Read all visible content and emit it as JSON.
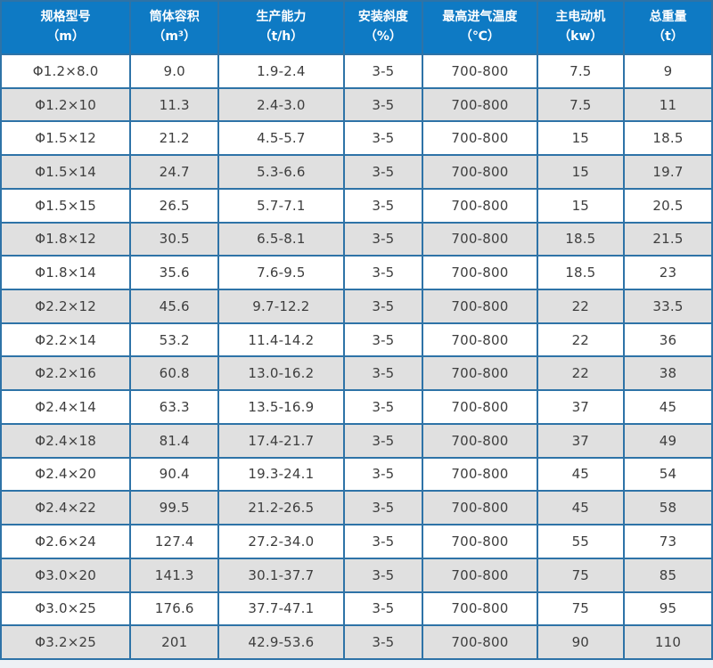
{
  "colors": {
    "header_bg": "#0e7ac4",
    "header_text": "#ffffff",
    "grid_border": "#2e73a7",
    "outer_border": "#1d679e",
    "row_odd_bg": "#ffffff",
    "row_even_bg": "#e0e0e0",
    "cell_text": "#3e3e3e",
    "page_bg": "#eef1f5"
  },
  "chart_data": {
    "type": "table",
    "title": "",
    "columns": [
      {
        "label": "规格型号",
        "unit": "（m）"
      },
      {
        "label": "筒体容积",
        "unit": "（m³）"
      },
      {
        "label": "生产能力",
        "unit": "（t/h）"
      },
      {
        "label": "安装斜度",
        "unit": "（%）"
      },
      {
        "label": "最高进气温度",
        "unit": "（℃）"
      },
      {
        "label": "主电动机",
        "unit": "（kw）"
      },
      {
        "label": "总重量",
        "unit": "（t）"
      }
    ],
    "rows": [
      [
        "Φ1.2×8.0",
        "9.0",
        "1.9-2.4",
        "3-5",
        "700-800",
        "7.5",
        "9"
      ],
      [
        "Φ1.2×10",
        "11.3",
        "2.4-3.0",
        "3-5",
        "700-800",
        "7.5",
        "11"
      ],
      [
        "Φ1.5×12",
        "21.2",
        "4.5-5.7",
        "3-5",
        "700-800",
        "15",
        "18.5"
      ],
      [
        "Φ1.5×14",
        "24.7",
        "5.3-6.6",
        "3-5",
        "700-800",
        "15",
        "19.7"
      ],
      [
        "Φ1.5×15",
        "26.5",
        "5.7-7.1",
        "3-5",
        "700-800",
        "15",
        "20.5"
      ],
      [
        "Φ1.8×12",
        "30.5",
        "6.5-8.1",
        "3-5",
        "700-800",
        "18.5",
        "21.5"
      ],
      [
        "Φ1.8×14",
        "35.6",
        "7.6-9.5",
        "3-5",
        "700-800",
        "18.5",
        "23"
      ],
      [
        "Φ2.2×12",
        "45.6",
        "9.7-12.2",
        "3-5",
        "700-800",
        "22",
        "33.5"
      ],
      [
        "Φ2.2×14",
        "53.2",
        "11.4-14.2",
        "3-5",
        "700-800",
        "22",
        "36"
      ],
      [
        "Φ2.2×16",
        "60.8",
        "13.0-16.2",
        "3-5",
        "700-800",
        "22",
        "38"
      ],
      [
        "Φ2.4×14",
        "63.3",
        "13.5-16.9",
        "3-5",
        "700-800",
        "37",
        "45"
      ],
      [
        "Φ2.4×18",
        "81.4",
        "17.4-21.7",
        "3-5",
        "700-800",
        "37",
        "49"
      ],
      [
        "Φ2.4×20",
        "90.4",
        "19.3-24.1",
        "3-5",
        "700-800",
        "45",
        "54"
      ],
      [
        "Φ2.4×22",
        "99.5",
        "21.2-26.5",
        "3-5",
        "700-800",
        "45",
        "58"
      ],
      [
        "Φ2.6×24",
        "127.4",
        "27.2-34.0",
        "3-5",
        "700-800",
        "55",
        "73"
      ],
      [
        "Φ3.0×20",
        "141.3",
        "30.1-37.7",
        "3-5",
        "700-800",
        "75",
        "85"
      ],
      [
        "Φ3.0×25",
        "176.6",
        "37.7-47.1",
        "3-5",
        "700-800",
        "75",
        "95"
      ],
      [
        "Φ3.2×25",
        "201",
        "42.9-53.6",
        "3-5",
        "700-800",
        "90",
        "110"
      ]
    ]
  }
}
